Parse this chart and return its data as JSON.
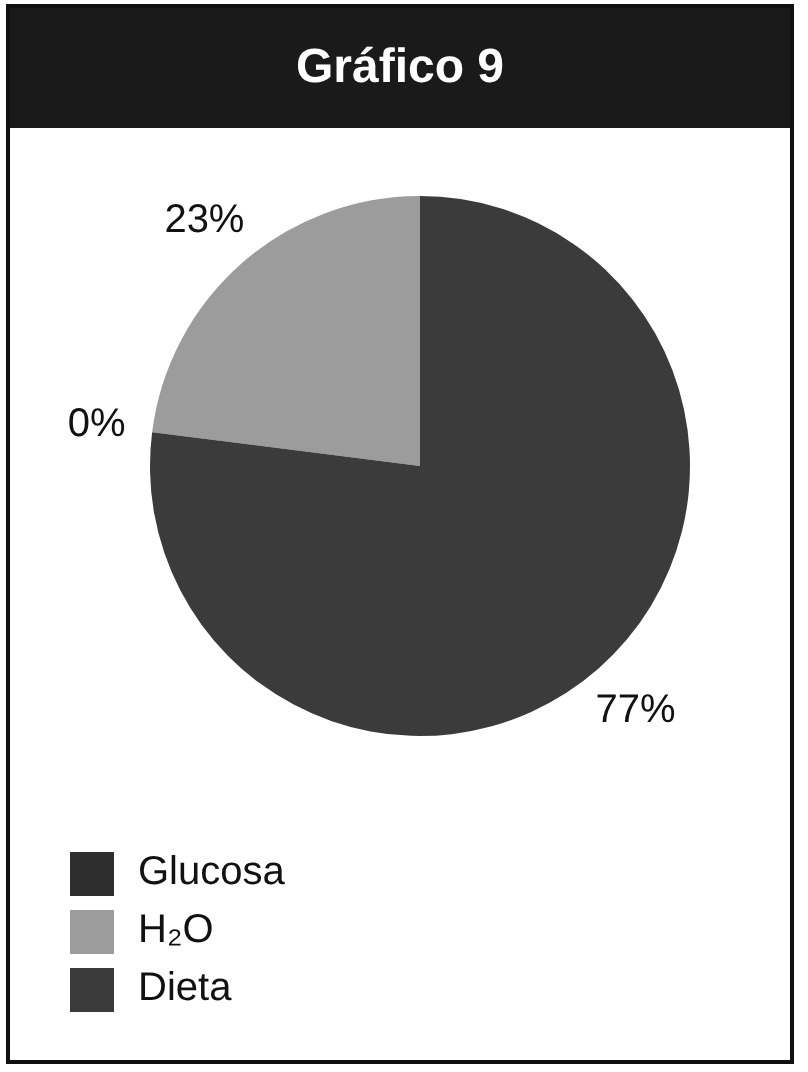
{
  "chart_data": {
    "type": "pie",
    "title": "Gráfico 9",
    "categories": [
      "Glucosa",
      "H₂O",
      "Dieta"
    ],
    "values": [
      0,
      23,
      77
    ],
    "colors": [
      "#2e2e2e",
      "#9c9c9c",
      "#3b3b3b"
    ],
    "value_labels": [
      "0%",
      "23%",
      "77%"
    ],
    "legend": "bottom left"
  }
}
